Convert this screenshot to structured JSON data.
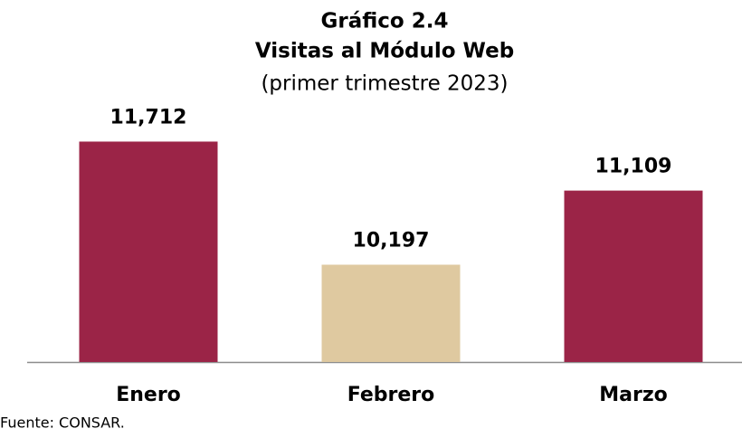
{
  "chart_data": {
    "type": "bar",
    "title": [
      "Gráfico 2.4",
      "Visitas al Módulo Web"
    ],
    "subtitle": "(primer trimestre 2023)",
    "categories": [
      "Enero",
      "Febrero",
      "Marzo"
    ],
    "values": [
      11712,
      10197,
      11109
    ],
    "value_labels": [
      "11,712",
      "10,197",
      "11,109"
    ],
    "colors": [
      "#9b2447",
      "#dfc9a0",
      "#9b2447"
    ],
    "ylim": [
      9000,
      12000
    ],
    "source": "Fuente: CONSAR."
  }
}
